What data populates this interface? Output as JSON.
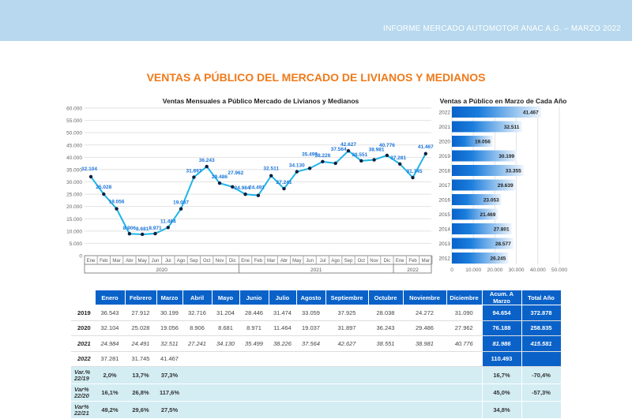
{
  "header": {
    "report": "INFORME MERCADO AUTOMOTOR ANAC A.G. – MARZO 2022"
  },
  "page_title": "VENTAS A PÚBLICO DEL MERCADO DE LIVIANOS Y MEDIANOS",
  "colors": {
    "line": "#1fb5e8",
    "marker": "#0d1f3c",
    "label": "#1a73d9",
    "bar": "#0a62c9",
    "table_header": "#0a62c9",
    "var_row": "#d3edf3",
    "title": "#ef7a1a"
  },
  "chart_data": [
    {
      "type": "line",
      "title": "Ventas Mensuales a Público Mercado de Livianos y Medianos",
      "ylim": [
        0,
        60000
      ],
      "yticks": [
        "0",
        "5.000",
        "10.000",
        "15.000",
        "20.000",
        "25.000",
        "30.000",
        "35.000",
        "40.000",
        "45.000",
        "50.000",
        "55.000",
        "60.000"
      ],
      "x": [
        "Ene",
        "Feb",
        "Mar",
        "Abr",
        "May",
        "Jun",
        "Jul",
        "Ago",
        "Sep",
        "Oct",
        "Nov",
        "Dic",
        "Ene",
        "Feb",
        "Mar",
        "Abr",
        "May",
        "Jun",
        "Jul",
        "Ago",
        "Sep",
        "Oct",
        "Nov",
        "Dic",
        "Ene",
        "Feb",
        "Mar"
      ],
      "groups": [
        {
          "label": "2020",
          "count": 12
        },
        {
          "label": "2021",
          "count": 12
        },
        {
          "label": "2022",
          "count": 3
        }
      ],
      "values": [
        32104,
        25028,
        19056,
        8906,
        8681,
        8971,
        11464,
        19037,
        31897,
        36243,
        29486,
        27962,
        24984,
        24491,
        32511,
        27241,
        34130,
        35499,
        38226,
        37564,
        42627,
        38551,
        38981,
        40776,
        37281,
        31745,
        41467
      ],
      "labels": [
        "32.104",
        "25.028",
        "19.056",
        "8.906",
        "8.681",
        "8.971",
        "11.464",
        "19.037",
        "31.897",
        "36.243",
        "29.486",
        "27.962",
        "24.984",
        "24.491",
        "32.511",
        "27.241",
        "34.130",
        "35.499",
        "38.226",
        "37.564",
        "42.627",
        "38.551",
        "38.981",
        "40.776",
        "37.281",
        "31.745",
        "41.467"
      ],
      "grid": true
    },
    {
      "type": "bar",
      "orientation": "horizontal",
      "title": "Ventas a Público en Marzo de Cada Año",
      "categories": [
        "2022",
        "2021",
        "2020",
        "2019",
        "2018",
        "2017",
        "2016",
        "2015",
        "2014",
        "2013",
        "2012"
      ],
      "values": [
        41467,
        32511,
        19056,
        30199,
        33355,
        29639,
        23053,
        21469,
        27801,
        28577,
        26245
      ],
      "labels": [
        "41.467",
        "32.511",
        "19.056",
        "30.199",
        "33.355",
        "29.639",
        "23.053",
        "21.469",
        "27.801",
        "28.577",
        "26.245"
      ],
      "xlim": [
        0,
        50000
      ],
      "xticks": [
        "0",
        "10.000",
        "20.000",
        "30.000",
        "40.000",
        "50.000"
      ],
      "grid": true
    }
  ],
  "table": {
    "headers": [
      "Enero",
      "Febrero",
      "Marzo",
      "Abril",
      "Mayo",
      "Junio",
      "Julio",
      "Agosto",
      "Septiembre",
      "Octubre",
      "Noviembre",
      "Diciembre",
      "Acum. A Marzo",
      "Total Año"
    ],
    "rows": [
      {
        "label": "2019",
        "cells": [
          "36.543",
          "27.912",
          "30.199",
          "32.716",
          "31.204",
          "28.446",
          "31.474",
          "33.059",
          "37.925",
          "28.038",
          "24.272",
          "31.090"
        ],
        "acum": "94.654",
        "total": "372.878"
      },
      {
        "label": "2020",
        "cells": [
          "32.104",
          "25.028",
          "19.056",
          "8.906",
          "8.681",
          "8.971",
          "11.464",
          "19.037",
          "31.897",
          "36.243",
          "29.486",
          "27.962"
        ],
        "acum": "76.188",
        "total": "258.835"
      },
      {
        "label": "2021",
        "cells": [
          "24.984",
          "24.491",
          "32.511",
          "27.241",
          "34.130",
          "35.499",
          "38.226",
          "37.564",
          "42.627",
          "38.551",
          "38.981",
          "40.776"
        ],
        "acum": "81.986",
        "total": "415.581"
      },
      {
        "label": "2022",
        "cells": [
          "37.281",
          "31.745",
          "41.467",
          "",
          "",
          "",
          "",
          "",
          "",
          "",
          "",
          ""
        ],
        "acum": "110.493",
        "total": ""
      }
    ],
    "var_rows": [
      {
        "label": "Var.% 22/19",
        "cells": [
          "2,0%",
          "13,7%",
          "37,3%"
        ],
        "acum": "16,7%",
        "total": "-70,4%"
      },
      {
        "label": "Var% 22/20",
        "cells": [
          "16,1%",
          "26,8%",
          "117,6%"
        ],
        "acum": "45,0%",
        "total": "-57,3%"
      },
      {
        "label": "Var% 22/21",
        "cells": [
          "49,2%",
          "29,6%",
          "27,5%"
        ],
        "acum": "34,8%",
        "total": ""
      }
    ]
  }
}
